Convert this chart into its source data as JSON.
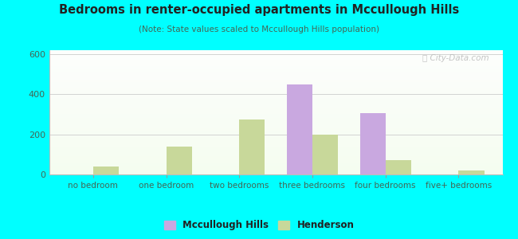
{
  "title": "Bedrooms in renter-occupied apartments in Mccullough Hills",
  "subtitle": "(Note: State values scaled to Mccullough Hills population)",
  "categories": [
    "no bedroom",
    "one bedroom",
    "two bedrooms",
    "three bedrooms",
    "four bedrooms",
    "five+ bedrooms"
  ],
  "mccullough_values": [
    0,
    0,
    0,
    450,
    305,
    0
  ],
  "henderson_values": [
    40,
    140,
    275,
    200,
    70,
    18
  ],
  "mccullough_color": "#c9a8e0",
  "henderson_color": "#c8d89a",
  "ylim": [
    0,
    620
  ],
  "yticks": [
    0,
    200,
    400,
    600
  ],
  "background_outer": "#00FFFF",
  "bar_width": 0.35,
  "watermark": "Ⓜ City-Data.com",
  "legend_mccullough": "Mccullough Hills",
  "legend_henderson": "Henderson"
}
